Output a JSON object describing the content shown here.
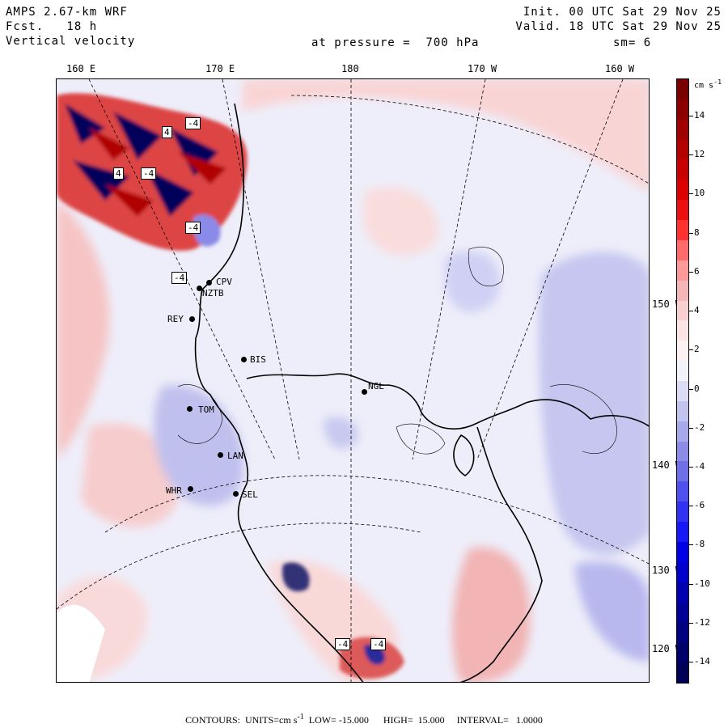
{
  "header": {
    "line1_left": "AMPS 2.67-km WRF",
    "line2_left": "Fcst.   18 h",
    "line3_left": "Vertical velocity",
    "line1_right": "Init. 00 UTC Sat 29 Nov 25",
    "line2_right": "Valid. 18 UTC Sat 29 Nov 25",
    "pressure": "at pressure =  700 hPa",
    "smoothing": "sm= 6"
  },
  "lon_labels": [
    "160 E",
    "170 E",
    "180",
    "170 W",
    "160 W"
  ],
  "lat_labels": [
    "150 W",
    "140 W",
    "130 W",
    "120 W"
  ],
  "colorbar": {
    "unit": "cm s",
    "unit_exp": "-1",
    "ticks": [
      "14",
      "12",
      "10",
      "8",
      "6",
      "4",
      "2",
      "0",
      "-2",
      "-4",
      "-6",
      "-8",
      "-10",
      "-12",
      "-14"
    ],
    "colors": [
      "#7a0000",
      "#8c0000",
      "#a00000",
      "#b50000",
      "#c80000",
      "#dd0000",
      "#ee1010",
      "#ff3030",
      "#ff6a6a",
      "#ff9a9a",
      "#f4b6b6",
      "#f9d0d0",
      "#fbe4e4",
      "#fdf2f2",
      "#f2f2fb",
      "#dcdcf6",
      "#c3c3f0",
      "#a8a8ea",
      "#8c8ce6",
      "#6f6fe8",
      "#5050ef",
      "#3232f4",
      "#1818f7",
      "#0000e6",
      "#0000cc",
      "#0000b0",
      "#000096",
      "#000080",
      "#00006b",
      "#000055"
    ]
  },
  "stations": [
    "CPV",
    "NZTB",
    "REY",
    "BIS",
    "NGL",
    "TOM",
    "LAN",
    "WHR",
    "SEL"
  ],
  "box_labels": [
    "-4",
    "-4",
    "4",
    "-4",
    "-4",
    "-4",
    "4",
    "-4"
  ],
  "footer": {
    "text": "CONTOURS:  UNITS=cm s",
    "exp": "-1",
    "rest": "  LOW= -15.000      HIGH=  15.000     INTERVAL=   1.0000"
  }
}
